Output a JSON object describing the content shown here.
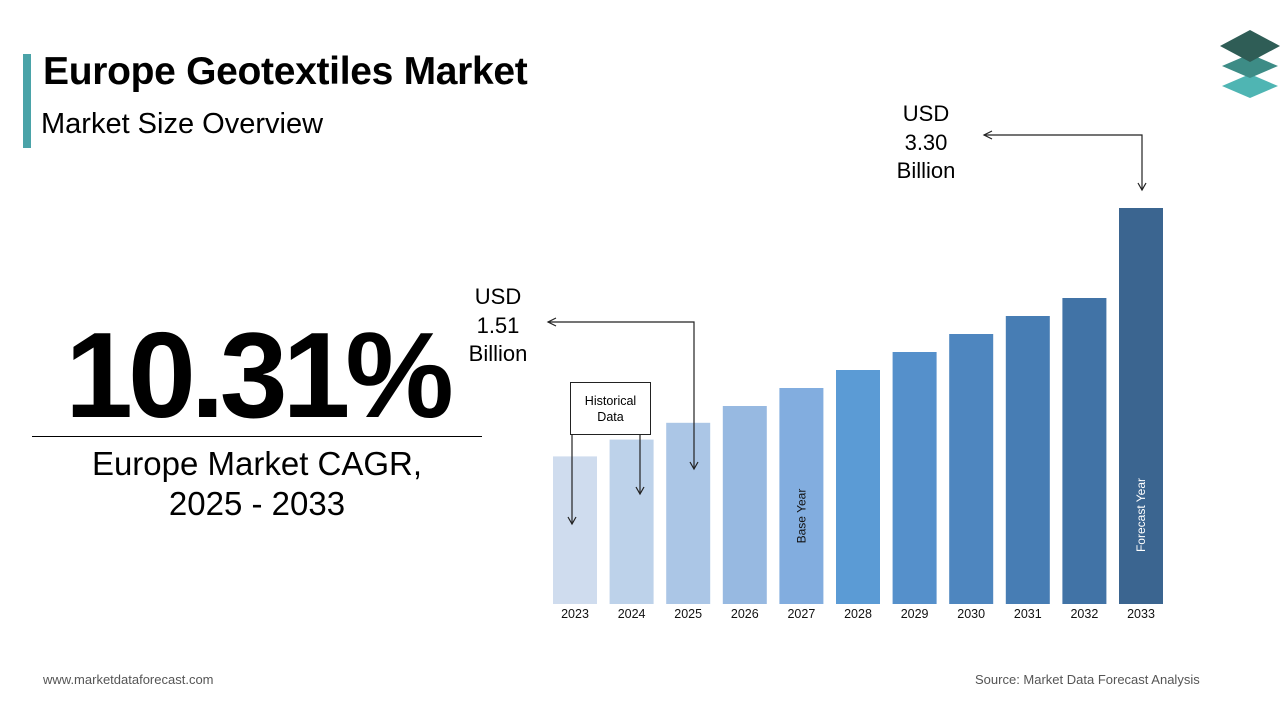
{
  "header": {
    "title": "Europe Geotextiles Market",
    "subtitle": "Market Size Overview"
  },
  "cagr": {
    "value": "10.31%",
    "label_line1": "Europe Market CAGR,",
    "label_line2": "2025 - 2033"
  },
  "callouts": {
    "start": {
      "line1": "USD",
      "line2": "1.51",
      "line3": "Billion"
    },
    "end": {
      "line1": "USD",
      "line2": "3.30",
      "line3": "Billion"
    }
  },
  "historical_box": {
    "line1": "Historical",
    "line2": "Data"
  },
  "footer": {
    "website": "www.marketdataforecast.com",
    "source": "Source: Market Data Forecast Analysis"
  },
  "colors": {
    "accent": "#4aa3a8",
    "bars": [
      "#cfdcee",
      "#bdd2ea",
      "#abc6e6",
      "#97b9e1",
      "#82addf",
      "#5b9bd5",
      "#5590cb",
      "#4e86bf",
      "#477db4",
      "#4173a6",
      "#3b6590"
    ]
  },
  "chart_data": {
    "type": "bar",
    "categories": [
      "2023",
      "2024",
      "2025",
      "2026",
      "2027",
      "2028",
      "2029",
      "2030",
      "2031",
      "2032",
      "2033"
    ],
    "values": [
      1.23,
      1.37,
      1.51,
      1.65,
      1.8,
      1.95,
      2.1,
      2.25,
      2.4,
      2.55,
      3.3
    ],
    "ylim": [
      0,
      3.3
    ],
    "bar_labels": {
      "2027": "Base Year",
      "2033": "Forecast Year"
    },
    "title": "",
    "xlabel": "",
    "ylabel": ""
  }
}
